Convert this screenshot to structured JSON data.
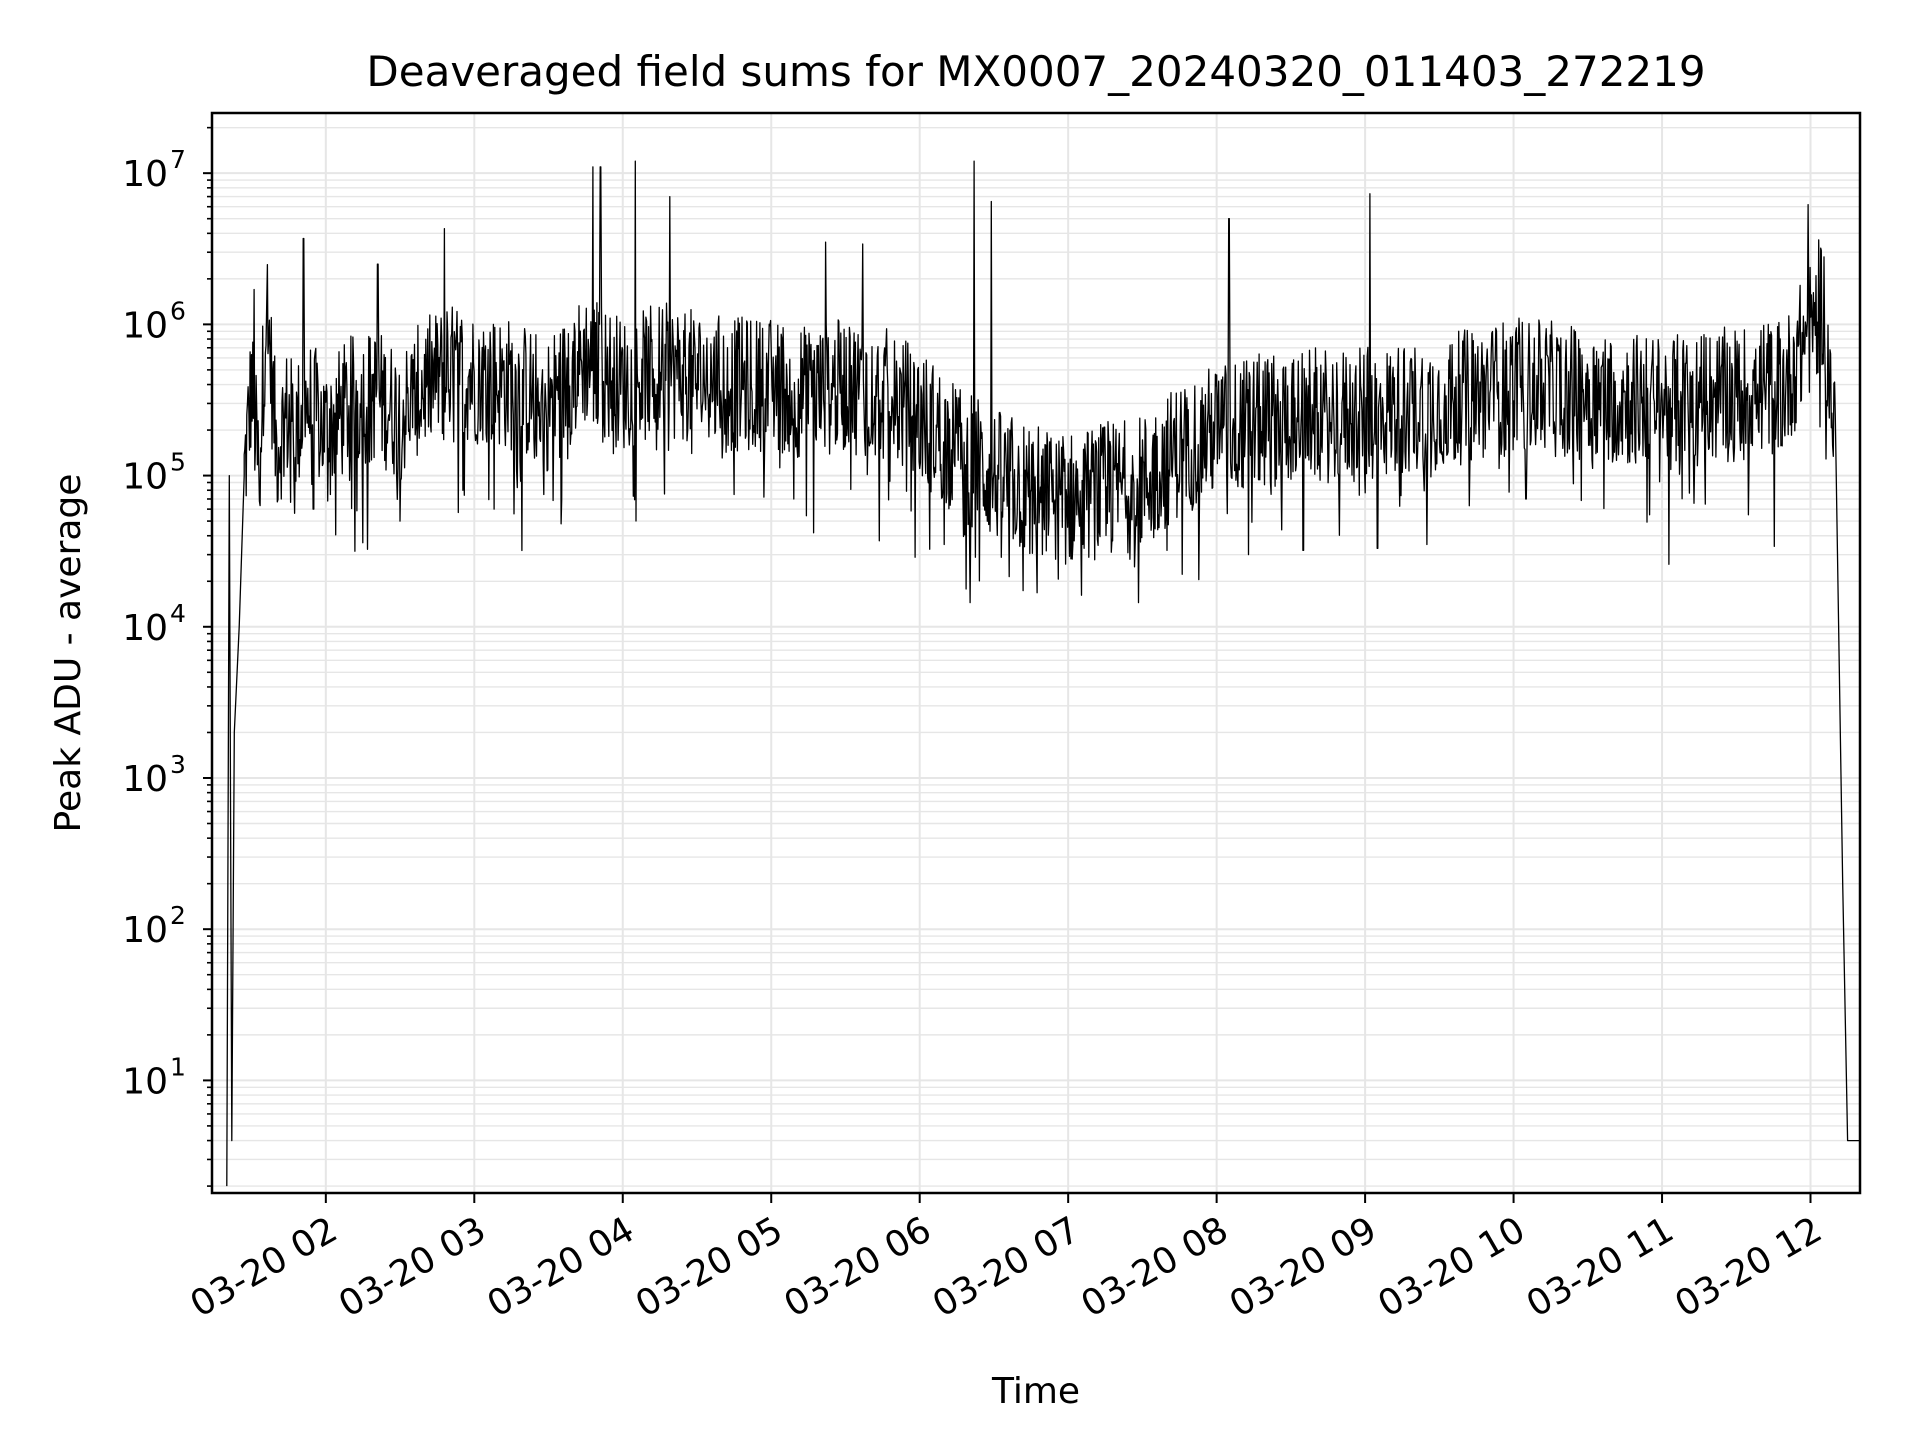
{
  "chart_data": {
    "type": "line",
    "title": "Deaveraged field sums for MX0007_20240320_011403_272219",
    "xlabel": "Time",
    "ylabel": "Peak ADU - average",
    "yscale": "log",
    "ylim": [
      1.8,
      25000000
    ],
    "xlim": [
      "2024-03-20 01:14",
      "2024-03-20 12:20"
    ],
    "grid": true,
    "line_color": "#000000",
    "grid_color": "#e6e6e6",
    "x_ticks": [
      {
        "value": "2024-03-20 02:00",
        "label": "03-20 02"
      },
      {
        "value": "2024-03-20 03:00",
        "label": "03-20 03"
      },
      {
        "value": "2024-03-20 04:00",
        "label": "03-20 04"
      },
      {
        "value": "2024-03-20 05:00",
        "label": "03-20 05"
      },
      {
        "value": "2024-03-20 06:00",
        "label": "03-20 06"
      },
      {
        "value": "2024-03-20 07:00",
        "label": "03-20 07"
      },
      {
        "value": "2024-03-20 08:00",
        "label": "03-20 08"
      },
      {
        "value": "2024-03-20 09:00",
        "label": "03-20 09"
      },
      {
        "value": "2024-03-20 10:00",
        "label": "03-20 10"
      },
      {
        "value": "2024-03-20 11:00",
        "label": "03-20 11"
      },
      {
        "value": "2024-03-20 12:00",
        "label": "03-20 12"
      }
    ],
    "y_ticks": [
      {
        "value": 10,
        "base": "10",
        "exp": "1"
      },
      {
        "value": 100,
        "base": "10",
        "exp": "2"
      },
      {
        "value": 1000,
        "base": "10",
        "exp": "3"
      },
      {
        "value": 10000,
        "base": "10",
        "exp": "4"
      },
      {
        "value": 100000,
        "base": "10",
        "exp": "5"
      },
      {
        "value": 1000000,
        "base": "10",
        "exp": "6"
      },
      {
        "value": 10000000,
        "base": "10",
        "exp": "7"
      }
    ],
    "series": [
      {
        "x": [
          "2024-03-20 01:20",
          "2024-03-20 01:21",
          "2024-03-20 01:22",
          "2024-03-20 01:23",
          "2024-03-20 01:25",
          "2024-03-20 01:27",
          "2024-03-20 01:30",
          "2024-03-20 01:33",
          "2024-03-20 01:36",
          "2024-03-20 01:40",
          "2024-03-20 01:44",
          "2024-03-20 01:48",
          "2024-03-20 01:52",
          "2024-03-20 01:56",
          "2024-03-20 02:00",
          "2024-03-20 02:10",
          "2024-03-20 02:20",
          "2024-03-20 02:30",
          "2024-03-20 02:40",
          "2024-03-20 02:50",
          "2024-03-20 03:00",
          "2024-03-20 03:15",
          "2024-03-20 03:30",
          "2024-03-20 03:45",
          "2024-03-20 04:00",
          "2024-03-20 04:15",
          "2024-03-20 04:30",
          "2024-03-20 04:45",
          "2024-03-20 05:00",
          "2024-03-20 05:15",
          "2024-03-20 05:30",
          "2024-03-20 05:45",
          "2024-03-20 06:00",
          "2024-03-20 06:15",
          "2024-03-20 06:30",
          "2024-03-20 06:45",
          "2024-03-20 07:00",
          "2024-03-20 07:15",
          "2024-03-20 07:30",
          "2024-03-20 07:45",
          "2024-03-20 08:00",
          "2024-03-20 08:30",
          "2024-03-20 09:00",
          "2024-03-20 09:30",
          "2024-03-20 10:00",
          "2024-03-20 10:30",
          "2024-03-20 11:00",
          "2024-03-20 11:30",
          "2024-03-20 11:50",
          "2024-03-20 12:05",
          "2024-03-20 12:10",
          "2024-03-20 12:13",
          "2024-03-20 12:15",
          "2024-03-20 12:20"
        ],
        "y": [
          2,
          100000,
          4,
          2000,
          10000,
          100000,
          400000,
          100000,
          1500000,
          150000,
          250000,
          200000,
          300000,
          250000,
          200000,
          300000,
          350000,
          250000,
          400000,
          500000,
          450000,
          400000,
          300000,
          600000,
          400000,
          500000,
          450000,
          400000,
          400000,
          350000,
          400000,
          350000,
          250000,
          150000,
          100000,
          80000,
          70000,
          80000,
          90000,
          150000,
          200000,
          250000,
          250000,
          300000,
          400000,
          350000,
          300000,
          350000,
          400000,
          1500000,
          150000,
          200,
          4,
          4
        ]
      }
    ],
    "spikes": [
      {
        "x": "2024-03-20 01:31",
        "y": 1700000
      },
      {
        "x": "2024-03-20 01:51",
        "y": 3700000
      },
      {
        "x": "2024-03-20 02:21",
        "y": 2500000
      },
      {
        "x": "2024-03-20 02:48",
        "y": 4300000
      },
      {
        "x": "2024-03-20 03:48",
        "y": 11000000
      },
      {
        "x": "2024-03-20 03:51",
        "y": 11000000
      },
      {
        "x": "2024-03-20 04:05",
        "y": 12000000
      },
      {
        "x": "2024-03-20 04:19",
        "y": 7000000
      },
      {
        "x": "2024-03-20 05:22",
        "y": 3500000
      },
      {
        "x": "2024-03-20 05:37",
        "y": 3400000
      },
      {
        "x": "2024-03-20 06:22",
        "y": 12000000
      },
      {
        "x": "2024-03-20 06:29",
        "y": 6500000
      },
      {
        "x": "2024-03-20 08:05",
        "y": 5000000
      },
      {
        "x": "2024-03-20 09:02",
        "y": 7300000
      },
      {
        "x": "2024-03-20 11:59",
        "y": 6200000
      }
    ],
    "dips": [
      {
        "x": "2024-03-20 01:55",
        "y": 60000
      },
      {
        "x": "2024-03-20 02:15",
        "y": 36000
      },
      {
        "x": "2024-03-20 02:30",
        "y": 50000
      },
      {
        "x": "2024-03-20 03:08",
        "y": 60000
      },
      {
        "x": "2024-03-20 03:28",
        "y": 75000
      },
      {
        "x": "2024-03-20 04:45",
        "y": 75000
      },
      {
        "x": "2024-03-20 05:09",
        "y": 70000
      },
      {
        "x": "2024-03-20 06:10",
        "y": 35000
      },
      {
        "x": "2024-03-20 06:55",
        "y": 28000
      },
      {
        "x": "2024-03-20 07:25",
        "y": 28000
      },
      {
        "x": "2024-03-20 07:40",
        "y": 32000
      },
      {
        "x": "2024-03-20 08:13",
        "y": 30000
      },
      {
        "x": "2024-03-20 08:35",
        "y": 32000
      },
      {
        "x": "2024-03-20 09:05",
        "y": 33000
      },
      {
        "x": "2024-03-20 09:25",
        "y": 35000
      },
      {
        "x": "2024-03-20 10:05",
        "y": 70000
      },
      {
        "x": "2024-03-20 10:55",
        "y": 55000
      },
      {
        "x": "2024-03-20 11:35",
        "y": 55000
      }
    ]
  }
}
